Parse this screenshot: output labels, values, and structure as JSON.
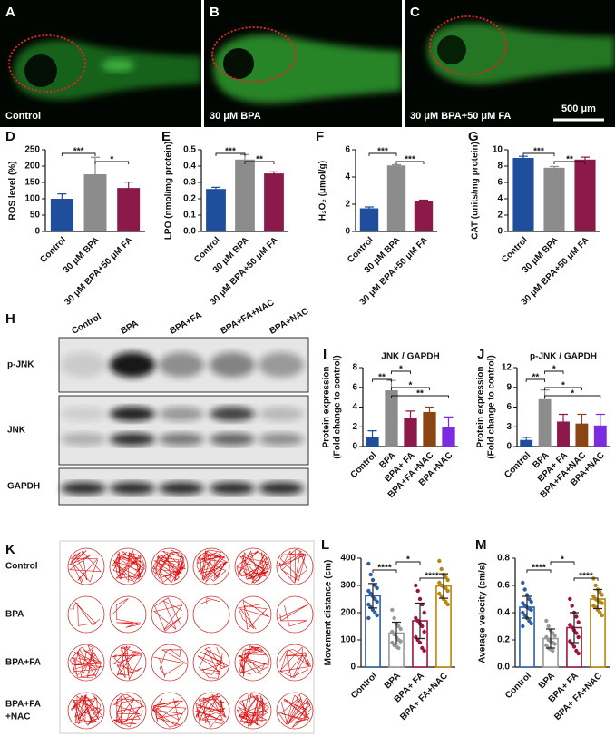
{
  "images": {
    "panels": [
      {
        "letter": "A",
        "label": "Control"
      },
      {
        "letter": "B",
        "label": "30 μM BPA"
      },
      {
        "letter": "C",
        "label": "30 μM BPA+50 μM FA"
      }
    ],
    "scale_bar": "500 μm"
  },
  "blot": {
    "panel": "H",
    "lanes": [
      "Control",
      "BPA",
      "BPA+FA",
      "BPA+FA+NAC",
      "BPA+NAC"
    ],
    "rows": [
      "p-JNK",
      "JNK",
      "GAPDH"
    ]
  },
  "tracking": {
    "panel": "K",
    "rows": [
      [
        "Control"
      ],
      [
        "BPA"
      ],
      [
        "BPA+FA"
      ],
      [
        "BPA+FA",
        "+NAC"
      ]
    ]
  },
  "chart_data": [
    {
      "type": "bar",
      "panel": "D",
      "ylabel": [
        "ROS level (%)"
      ],
      "categories": [
        "Control",
        "30 μM BPA",
        "30 μM BPA+50 μM FA"
      ],
      "values": [
        100,
        175,
        133
      ],
      "errors": [
        15,
        52,
        18
      ],
      "colors": [
        "#1f4e9c",
        "#8c8c8c",
        "#8b1a4a"
      ],
      "ylim": [
        0,
        250
      ],
      "yticks": [
        0,
        50,
        100,
        150,
        200,
        250
      ],
      "significance": [
        {
          "pair": [
            0,
            1
          ],
          "label": "***"
        },
        {
          "pair": [
            1,
            2
          ],
          "label": "*"
        }
      ]
    },
    {
      "type": "bar",
      "panel": "E",
      "ylabel": [
        "LPO (nmol/mg protein)"
      ],
      "categories": [
        "Control",
        "30 μM BPA",
        "30 μM BPA+50 μM FA"
      ],
      "values": [
        0.26,
        0.44,
        0.355
      ],
      "errors": [
        0.01,
        0.03,
        0.01
      ],
      "colors": [
        "#1f4e9c",
        "#8c8c8c",
        "#8b1a4a"
      ],
      "ylim": [
        0,
        0.5
      ],
      "yticks": [
        {
          "value": 0,
          "label": "0.0"
        },
        0.1,
        0.2,
        0.3,
        0.4,
        0.5
      ],
      "significance": [
        {
          "pair": [
            0,
            1
          ],
          "label": "***"
        },
        {
          "pair": [
            1,
            2
          ],
          "label": "**"
        }
      ]
    },
    {
      "type": "bar",
      "panel": "F",
      "ylabel": [
        "H₂O₂ (μmol/g)"
      ],
      "categories": [
        "Control",
        "30 μM BPA",
        "30 μM BPA+50 μM FA"
      ],
      "values": [
        1.7,
        4.85,
        2.2
      ],
      "errors": [
        0.1,
        0.05,
        0.1
      ],
      "colors": [
        "#1f4e9c",
        "#8c8c8c",
        "#8b1a4a"
      ],
      "ylim": [
        0,
        6
      ],
      "yticks": [
        0,
        2,
        4,
        6
      ],
      "significance": [
        {
          "pair": [
            0,
            1
          ],
          "label": "***"
        },
        {
          "pair": [
            1,
            2
          ],
          "label": "***"
        }
      ]
    },
    {
      "type": "bar",
      "panel": "G",
      "ylabel": [
        "CAT (units/mg protein)"
      ],
      "categories": [
        "Control",
        "30 μM BPA",
        "30 μM BPA+50 μM FA"
      ],
      "values": [
        9.0,
        7.8,
        8.8
      ],
      "errors": [
        0.2,
        0.15,
        0.3
      ],
      "colors": [
        "#1f4e9c",
        "#8c8c8c",
        "#8b1a4a"
      ],
      "ylim": [
        0,
        10
      ],
      "yticks": [
        0,
        2,
        4,
        6,
        8,
        10
      ],
      "significance": [
        {
          "pair": [
            0,
            1
          ],
          "label": "***"
        },
        {
          "pair": [
            1,
            2
          ],
          "label": "**"
        }
      ]
    },
    {
      "type": "bar",
      "panel": "I",
      "title": "JNK / GAPDH",
      "ylabel": [
        "Protein expression",
        "(Fold change to control)"
      ],
      "categories": [
        "Control",
        "BPA",
        "BPA+ FA",
        "BPA+FA+NAC",
        "BPA+NAC"
      ],
      "values": [
        1.0,
        5.7,
        2.9,
        3.5,
        2.0
      ],
      "errors": [
        0.6,
        1.0,
        0.7,
        0.5,
        1.0
      ],
      "colors": [
        "#1f4e9c",
        "#8c8c8c",
        "#8b1a4a",
        "#8b4513",
        "#7b2be0"
      ],
      "ylim": [
        0,
        8
      ],
      "yticks": [
        0,
        2,
        4,
        6,
        8
      ],
      "significance": [
        {
          "pair": [
            1,
            2
          ],
          "label": "*"
        },
        {
          "pair": [
            0,
            1
          ],
          "label": "**"
        },
        {
          "pair": [
            1,
            3
          ],
          "label": "*"
        },
        {
          "pair": [
            1,
            4
          ],
          "label": "**"
        }
      ]
    },
    {
      "type": "bar",
      "panel": "J",
      "title": "p-JNK / GAPDH",
      "ylabel": [
        "Protein expression",
        "(Fold change to control)"
      ],
      "categories": [
        "Control",
        "BPA",
        "BPA+ FA",
        "BPA+FA+NAC",
        "BPA+NAC"
      ],
      "values": [
        1.0,
        7.2,
        3.8,
        3.5,
        3.2
      ],
      "errors": [
        0.4,
        1.4,
        1.1,
        1.4,
        1.7
      ],
      "colors": [
        "#1f4e9c",
        "#8c8c8c",
        "#8b1a4a",
        "#8b4513",
        "#7b2be0"
      ],
      "ylim": [
        0,
        12
      ],
      "yticks": [
        0,
        3,
        6,
        9,
        12
      ],
      "significance": [
        {
          "pair": [
            1,
            2
          ],
          "label": "*"
        },
        {
          "pair": [
            0,
            1
          ],
          "label": "**"
        },
        {
          "pair": [
            1,
            3
          ],
          "label": "*"
        },
        {
          "pair": [
            1,
            4
          ],
          "label": "*"
        }
      ]
    },
    {
      "type": "bar",
      "panel": "L",
      "filled": false,
      "ylabel": [
        "Movement distance (cm)"
      ],
      "categories": [
        "Control",
        "BPA",
        "BPA+ FA",
        "BPA+ FA+NAC"
      ],
      "values": [
        262,
        125,
        170,
        298
      ],
      "errors": [
        45,
        40,
        65,
        45
      ],
      "colors": [
        "#2d5fa6",
        "#999999",
        "#a0143c",
        "#b8860b"
      ],
      "ylim": [
        0,
        400
      ],
      "yticks": [
        0,
        100,
        200,
        300,
        400
      ],
      "points": [
        [
          380,
          340,
          320,
          300,
          290,
          280,
          270,
          260,
          250,
          240,
          230,
          220,
          210,
          200,
          190,
          180
        ],
        [
          210,
          180,
          160,
          150,
          140,
          130,
          120,
          110,
          100,
          95,
          90,
          80,
          75,
          70
        ],
        [
          300,
          280,
          250,
          230,
          200,
          180,
          170,
          160,
          150,
          130,
          110,
          100,
          90,
          70,
          60
        ],
        [
          390,
          360,
          340,
          330,
          320,
          310,
          300,
          295,
          290,
          280,
          270,
          260,
          250,
          240,
          230
        ]
      ],
      "significance": [
        {
          "pair": [
            1,
            2
          ],
          "label": "*"
        },
        {
          "pair": [
            0,
            1
          ],
          "label": "****"
        },
        {
          "pair": [
            2,
            3
          ],
          "label": "****"
        }
      ]
    },
    {
      "type": "bar",
      "panel": "M",
      "filled": false,
      "ylabel": [
        "Average velocity (cm/s)"
      ],
      "categories": [
        "Control",
        "BPA",
        "BPA+ FA",
        "BPA+ FA+NAC"
      ],
      "values": [
        0.44,
        0.21,
        0.29,
        0.5
      ],
      "errors": [
        0.08,
        0.07,
        0.11,
        0.07
      ],
      "colors": [
        "#2d5fa6",
        "#999999",
        "#a0143c",
        "#b8860b"
      ],
      "ylim": [
        0,
        0.8
      ],
      "yticks": [
        {
          "value": 0,
          "label": "0.0"
        },
        0.2,
        0.4,
        0.6,
        0.8
      ],
      "points": [
        [
          0.62,
          0.57,
          0.53,
          0.5,
          0.48,
          0.47,
          0.45,
          0.44,
          0.43,
          0.42,
          0.4,
          0.38,
          0.36,
          0.34,
          0.32,
          0.3
        ],
        [
          0.34,
          0.3,
          0.27,
          0.25,
          0.23,
          0.22,
          0.2,
          0.19,
          0.18,
          0.17,
          0.16,
          0.14,
          0.13,
          0.12
        ],
        [
          0.5,
          0.45,
          0.4,
          0.37,
          0.33,
          0.31,
          0.29,
          0.27,
          0.25,
          0.22,
          0.19,
          0.17,
          0.15,
          0.12,
          0.1
        ],
        [
          0.65,
          0.6,
          0.57,
          0.55,
          0.53,
          0.52,
          0.5,
          0.49,
          0.48,
          0.47,
          0.45,
          0.44,
          0.42,
          0.4,
          0.38
        ]
      ],
      "significance": [
        {
          "pair": [
            1,
            2
          ],
          "label": "*"
        },
        {
          "pair": [
            0,
            1
          ],
          "label": "****"
        },
        {
          "pair": [
            2,
            3
          ],
          "label": "****"
        }
      ]
    }
  ]
}
